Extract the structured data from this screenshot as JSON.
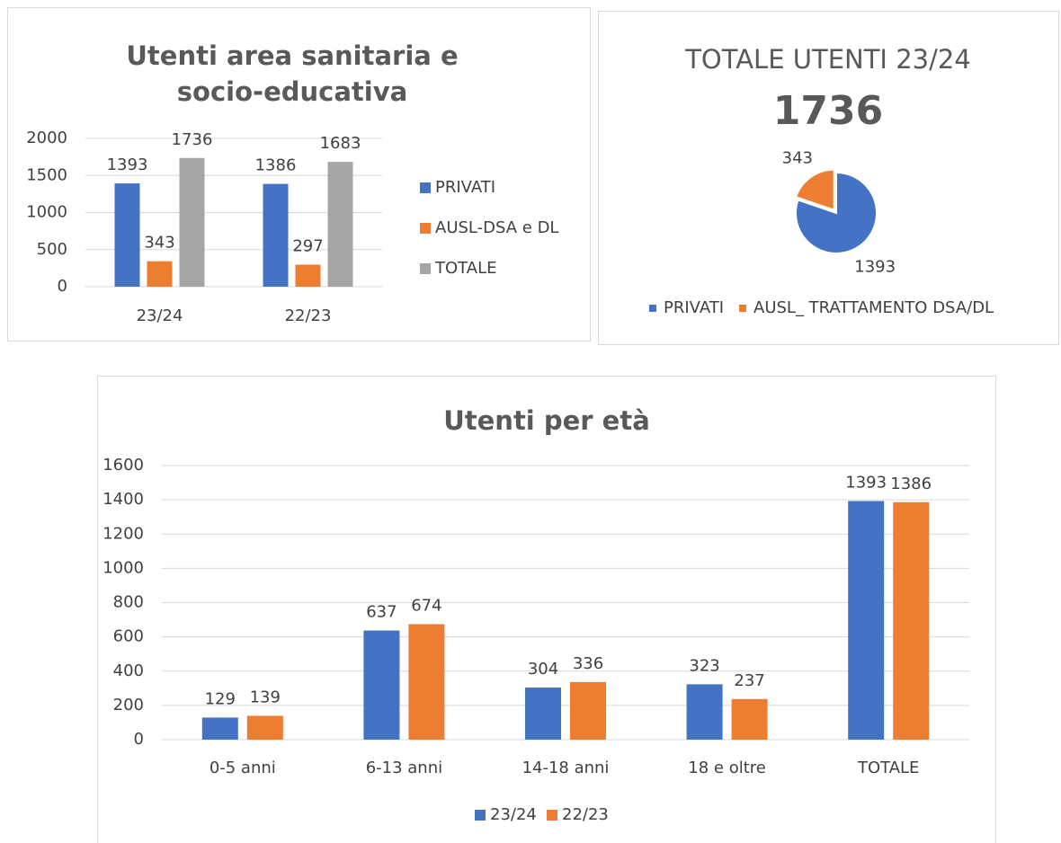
{
  "chart_data": [
    {
      "type": "bar",
      "title": "Utenti area sanitaria e socio-educativa",
      "categories": [
        "23/24",
        "22/23"
      ],
      "series": [
        {
          "name": "PRIVATI",
          "color": "#4472c4",
          "values": [
            1393,
            1386
          ]
        },
        {
          "name": "AUSL-DSA e DL",
          "color": "#ed7d31",
          "values": [
            343,
            297
          ]
        },
        {
          "name": "TOTALE",
          "color": "#a5a5a5",
          "values": [
            1736,
            1683
          ]
        }
      ],
      "ylim": [
        0,
        2000
      ],
      "yticks": [
        0,
        500,
        1000,
        1500,
        2000
      ],
      "grid": true,
      "legend": "right"
    },
    {
      "type": "pie",
      "title": "TOTALE UTENTI 23/24",
      "subtitle": "1736",
      "categories": [
        "PRIVATI",
        "AUSL_ TRATTAMENTO DSA/DL"
      ],
      "values": [
        1393,
        343
      ],
      "colors": [
        "#4472c4",
        "#ed7d31"
      ],
      "legend": "bottom"
    },
    {
      "type": "bar",
      "title": "Utenti per età",
      "categories": [
        "0-5 anni",
        "6-13 anni",
        "14-18 anni",
        "18 e oltre",
        "TOTALE"
      ],
      "series": [
        {
          "name": "23/24",
          "color": "#4472c4",
          "values": [
            129,
            637,
            304,
            323,
            1393
          ]
        },
        {
          "name": "22/23",
          "color": "#ed7d31",
          "values": [
            139,
            674,
            336,
            237,
            1386
          ]
        }
      ],
      "ylim": [
        0,
        1600
      ],
      "yticks": [
        0,
        200,
        400,
        600,
        800,
        1000,
        1200,
        1400,
        1600
      ],
      "grid": true,
      "legend": "bottom"
    }
  ]
}
